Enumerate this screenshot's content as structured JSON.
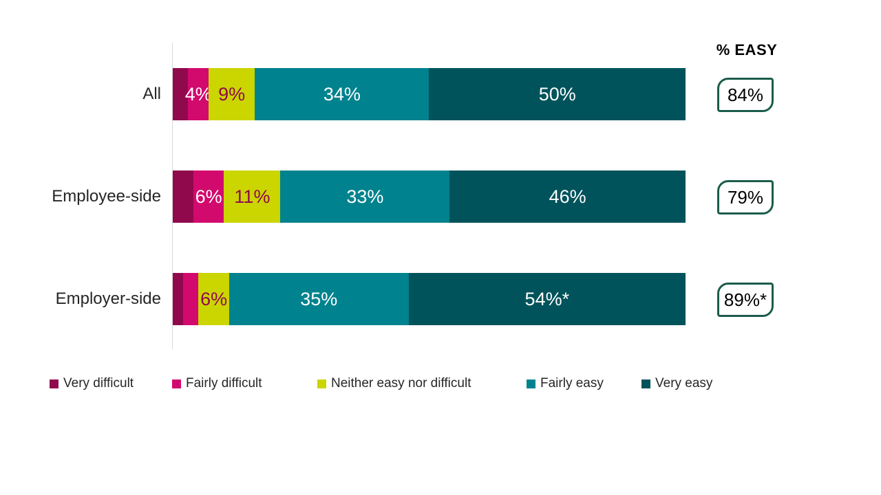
{
  "chart_data": {
    "type": "bar",
    "subtype": "horizontal-stacked-100",
    "title": "",
    "categories": [
      "All",
      "Employee-side",
      "Employer-side"
    ],
    "series": [
      {
        "name": "Very difficult",
        "color": "#90094c",
        "label_color": "#ffffff",
        "values": [
          3,
          4,
          2
        ],
        "labels": [
          "",
          "",
          ""
        ]
      },
      {
        "name": "Fairly difficult",
        "color": "#d20a6e",
        "label_color": "#ffffff",
        "values": [
          4,
          6,
          3
        ],
        "labels": [
          "4%",
          "6%",
          ""
        ]
      },
      {
        "name": "Neither easy nor difficult",
        "color": "#cbd500",
        "label_color": "#90094c",
        "values": [
          9,
          11,
          6
        ],
        "labels": [
          "9%",
          "11%",
          "6%"
        ]
      },
      {
        "name": "Fairly easy",
        "color": "#00838e",
        "label_color": "#ffffff",
        "values": [
          34,
          33,
          35
        ],
        "labels": [
          "34%",
          "33%",
          "35%"
        ]
      },
      {
        "name": "Very easy",
        "color": "#00535b",
        "label_color": "#ffffff",
        "values": [
          50,
          46,
          54
        ],
        "labels": [
          "50%",
          "46%",
          "54%*"
        ]
      }
    ],
    "xlim": [
      0,
      100
    ],
    "grid": false,
    "legend_position": "bottom",
    "axis_line_color": "#d9d9d9",
    "pct_easy": {
      "header": "% EASY",
      "values": [
        "84%",
        "79%",
        "89%*"
      ],
      "box_border_color": "#1b5c4b"
    }
  }
}
